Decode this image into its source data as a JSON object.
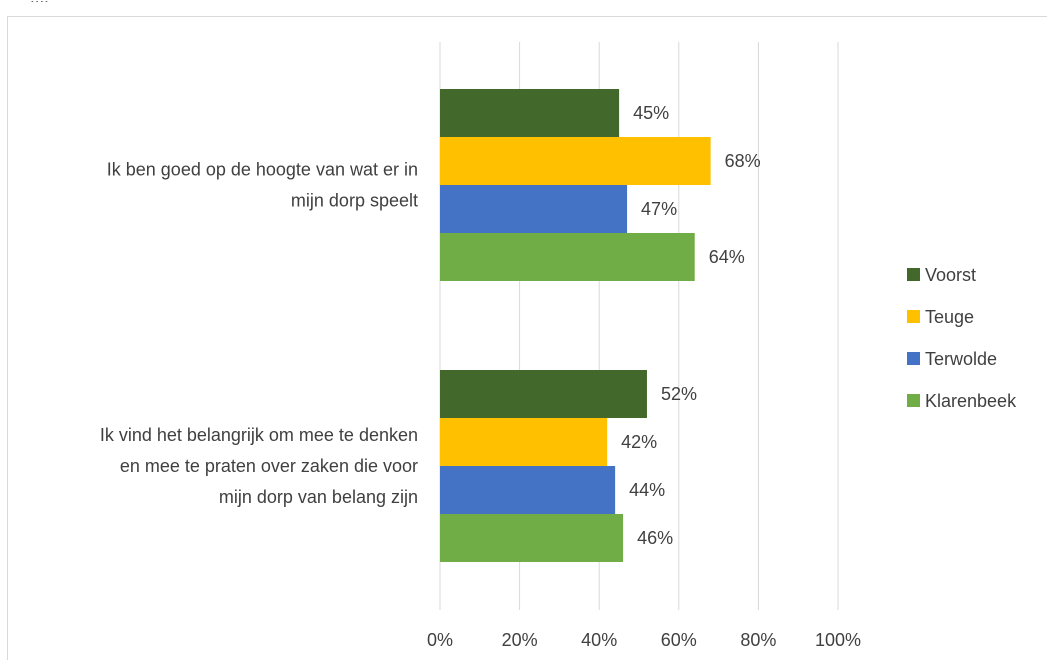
{
  "chart_data": {
    "type": "bar",
    "orientation": "horizontal",
    "categories": [
      [
        "Ik ben goed op de hoogte van wat er in",
        "mijn dorp speelt"
      ],
      [
        "Ik vind het belangrijk om mee te denken",
        "en mee te praten over zaken die voor",
        "mijn dorp van belang zijn"
      ]
    ],
    "series": [
      {
        "name": "Voorst",
        "color": "#43682b",
        "values": [
          45,
          52
        ]
      },
      {
        "name": "Teuge",
        "color": "#ffc000",
        "values": [
          68,
          42
        ]
      },
      {
        "name": "Terwolde",
        "color": "#4472c4",
        "values": [
          47,
          44
        ]
      },
      {
        "name": "Klarenbeek",
        "color": "#70ad47",
        "values": [
          64,
          46
        ]
      }
    ],
    "xlim": [
      0,
      100
    ],
    "xticks": [
      0,
      20,
      40,
      60,
      80,
      100
    ],
    "tick_suffix": "%",
    "data_label_suffix": "%",
    "legend_position": "right",
    "grid": true
  },
  "header_fragment": "...."
}
